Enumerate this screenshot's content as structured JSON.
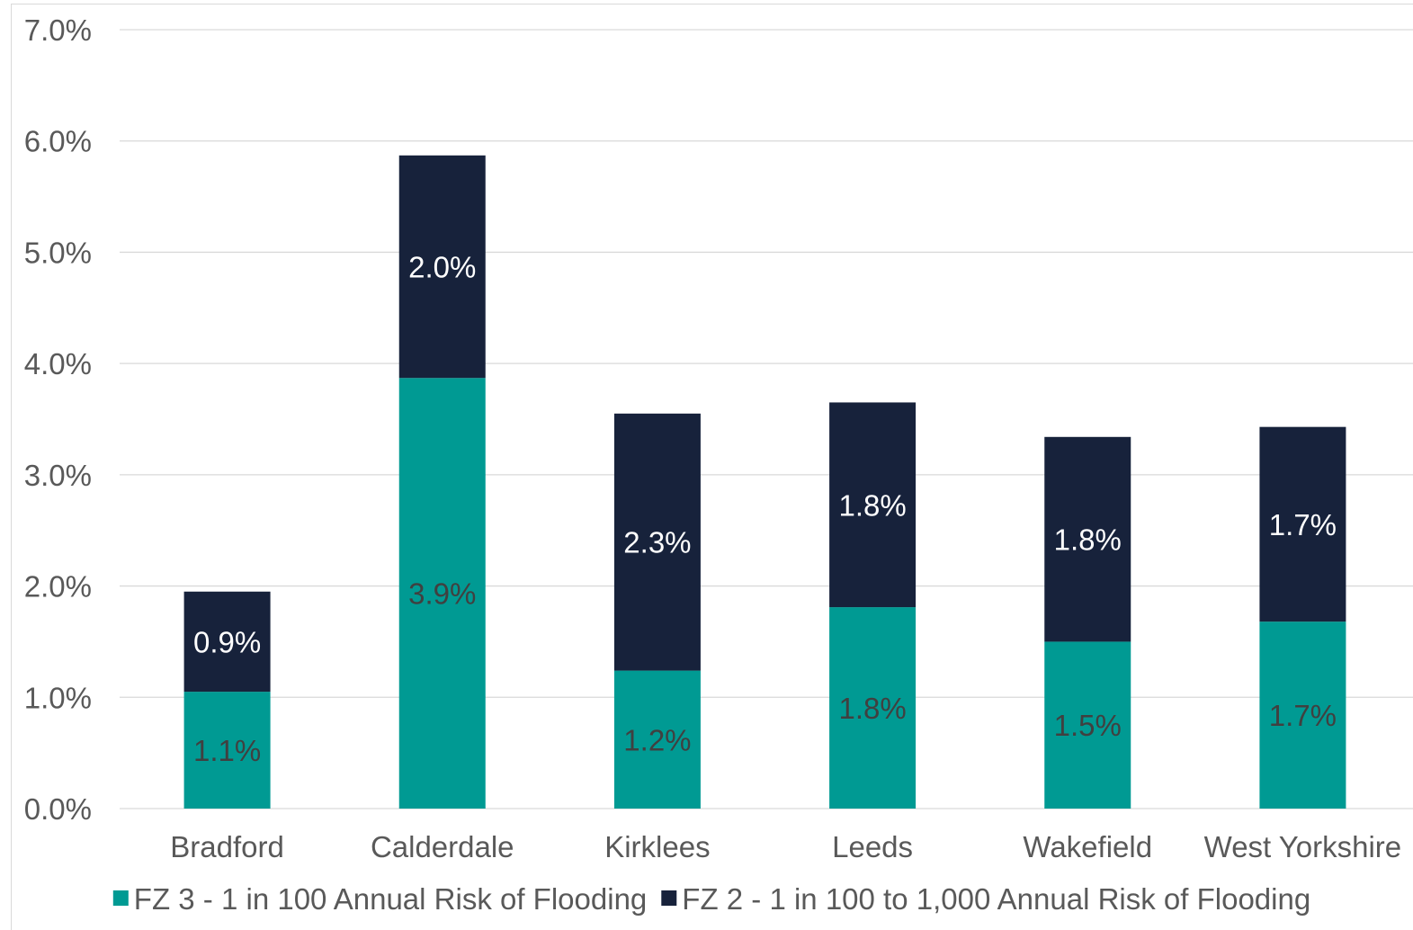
{
  "chart_data": {
    "type": "bar",
    "stacked": true,
    "categories": [
      "Bradford",
      "Calderdale",
      "Kirklees",
      "Leeds",
      "Wakefield",
      "West Yorkshire"
    ],
    "series": [
      {
        "name": "FZ 3 - 1 in 100 Annual Risk of Flooding",
        "color": "#009a93",
        "label_color": "#404040",
        "values": [
          1.05,
          3.87,
          1.24,
          1.81,
          1.5,
          1.68
        ],
        "labels": [
          "1.1%",
          "3.9%",
          "1.2%",
          "1.8%",
          "1.5%",
          "1.7%"
        ]
      },
      {
        "name": "FZ 2 - 1 in 100 to 1,000 Annual Risk of Flooding",
        "color": "#17223b",
        "label_color": "#ffffff",
        "values": [
          0.9,
          2.0,
          2.31,
          1.84,
          1.84,
          1.75
        ],
        "labels": [
          "0.9%",
          "2.0%",
          "2.3%",
          "1.8%",
          "1.8%",
          "1.7%"
        ]
      }
    ],
    "ylim": [
      0,
      7
    ],
    "yticks": [
      "0.0%",
      "1.0%",
      "2.0%",
      "3.0%",
      "4.0%",
      "5.0%",
      "6.0%",
      "7.0%"
    ],
    "title": "",
    "xlabel": "",
    "ylabel": "",
    "grid": true,
    "legend_position": "bottom"
  }
}
